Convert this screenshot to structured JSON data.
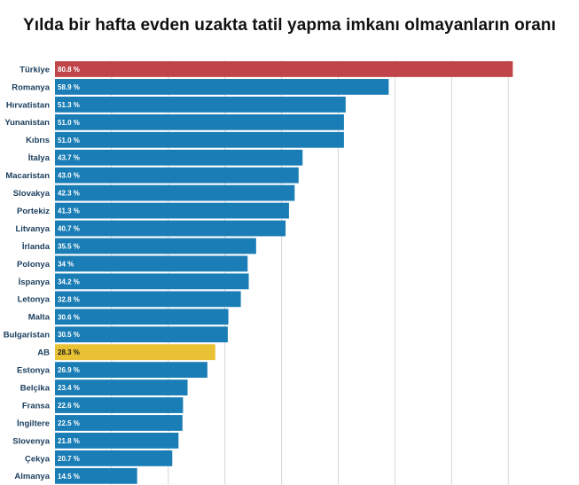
{
  "chart_data": {
    "type": "bar",
    "orientation": "horizontal",
    "title": "Yılda bir hafta evden uzakta tatil yapma imkanı olmayanların oranı",
    "categories": [
      "Türkiye",
      "Romanya",
      "Hırvatistan",
      "Yunanistan",
      "Kıbrıs",
      "İtalya",
      "Macaristan",
      "Slovakya",
      "Portekiz",
      "Litvanya",
      "İrlanda",
      "Polonya",
      "İspanya",
      "Letonya",
      "Malta",
      "Bulgaristan",
      "AB",
      "Estonya",
      "Belçika",
      "Fransa",
      "İngiltere",
      "Slovenya",
      "Çekya",
      "Almanya"
    ],
    "values": [
      80.8,
      58.9,
      51.3,
      51.0,
      51.0,
      43.7,
      43.0,
      42.3,
      41.3,
      40.7,
      35.5,
      34,
      34.2,
      32.8,
      30.6,
      30.5,
      28.3,
      26.9,
      23.4,
      22.6,
      22.5,
      21.8,
      20.7,
      14.5
    ],
    "value_labels": [
      "80.8 %",
      "58.9 %",
      "51.3 %",
      "51.0 %",
      "51.0 %",
      "43.7 %",
      "43.0 %",
      "42.3 %",
      "41.3 %",
      "40.7 %",
      "35.5 %",
      "34 %",
      "34.2 %",
      "32.8 %",
      "30.6 %",
      "30.5 %",
      "28.3 %",
      "26.9 %",
      "23.4 %",
      "22.6 %",
      "22.5 %",
      "21.8 %",
      "20.7 %",
      "14.5 %"
    ],
    "xlim": [
      0,
      82
    ],
    "grid": true,
    "legend": "none",
    "colors": {
      "default": "#1a7db5",
      "highlight_turkiye": "#c0454a",
      "highlight_ab": "#e8c234",
      "category_label": "#1a3d5c",
      "value_label_light": "#ffffff",
      "value_label_dark": "#1a1a1a",
      "gridline": "#d6d6d6"
    },
    "highlights": {
      "Türkiye": "highlight_turkiye",
      "AB": "highlight_ab"
    }
  }
}
